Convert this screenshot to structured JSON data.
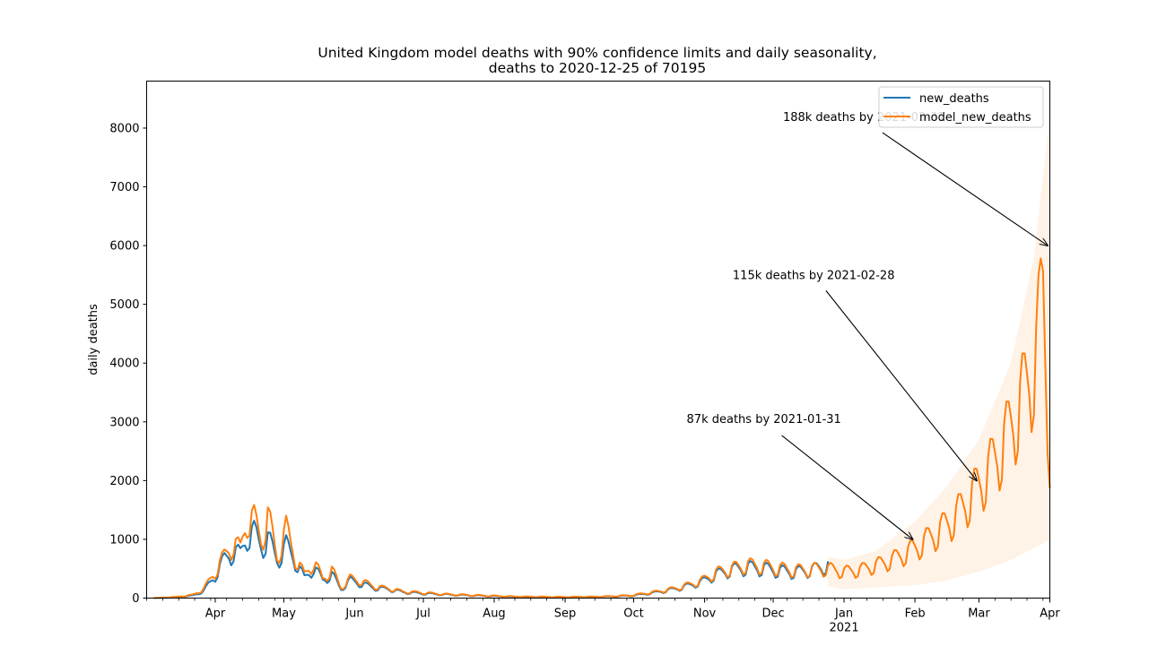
{
  "chart_data": {
    "type": "line",
    "title_line1": "United Kingdom model deaths with 90% confidence limits and daily seasonality,",
    "title_line2": "deaths to 2020-12-25 of 70195",
    "ylabel": "daily deaths",
    "xlabel": "",
    "ylim": [
      0,
      8800
    ],
    "xlim": [
      "2020-03-02",
      "2021-04-01"
    ],
    "grid": false,
    "legend_position": "top-right",
    "y_ticks": [
      0,
      1000,
      2000,
      3000,
      4000,
      5000,
      6000,
      7000,
      8000
    ],
    "x_ticks": [
      {
        "date": "2020-04-01",
        "label": "Apr"
      },
      {
        "date": "2020-05-01",
        "label": "May"
      },
      {
        "date": "2020-06-01",
        "label": "Jun"
      },
      {
        "date": "2020-07-01",
        "label": "Jul"
      },
      {
        "date": "2020-08-01",
        "label": "Aug"
      },
      {
        "date": "2020-09-01",
        "label": "Sep"
      },
      {
        "date": "2020-10-01",
        "label": "Oct"
      },
      {
        "date": "2020-11-01",
        "label": "Nov"
      },
      {
        "date": "2020-12-01",
        "label": "Dec"
      },
      {
        "date": "2021-01-01",
        "label": "Jan"
      },
      {
        "date": "2021-02-01",
        "label": "Feb"
      },
      {
        "date": "2021-03-01",
        "label": "Mar"
      },
      {
        "date": "2021-04-01",
        "label": "Apr"
      }
    ],
    "x_year_label": "2021",
    "series": [
      {
        "name": "new_deaths",
        "color": "#1f77b4",
        "points": [
          [
            "2020-03-05",
            0
          ],
          [
            "2020-03-15",
            15
          ],
          [
            "2020-03-22",
            40
          ],
          [
            "2020-03-27",
            120
          ],
          [
            "2020-04-01",
            380
          ],
          [
            "2020-04-05",
            650
          ],
          [
            "2020-04-09",
            800
          ],
          [
            "2020-04-12",
            720
          ],
          [
            "2020-04-15",
            1100
          ],
          [
            "2020-04-18",
            1080
          ],
          [
            "2020-04-21",
            900
          ],
          [
            "2020-04-24",
            1000
          ],
          [
            "2020-04-28",
            650
          ],
          [
            "2020-05-02",
            880
          ],
          [
            "2020-05-06",
            640
          ],
          [
            "2020-05-10",
            330
          ],
          [
            "2020-05-14",
            520
          ],
          [
            "2020-05-18",
            300
          ],
          [
            "2020-05-22",
            400
          ],
          [
            "2020-05-26",
            150
          ],
          [
            "2020-05-30",
            300
          ],
          [
            "2020-06-04",
            240
          ],
          [
            "2020-06-10",
            170
          ],
          [
            "2020-06-16",
            150
          ],
          [
            "2020-06-22",
            100
          ],
          [
            "2020-06-30",
            80
          ],
          [
            "2020-07-10",
            60
          ],
          [
            "2020-07-25",
            40
          ],
          [
            "2020-08-10",
            20
          ],
          [
            "2020-08-30",
            15
          ],
          [
            "2020-09-15",
            20
          ],
          [
            "2020-09-30",
            40
          ],
          [
            "2020-10-10",
            90
          ],
          [
            "2020-10-20",
            160
          ],
          [
            "2020-10-30",
            260
          ],
          [
            "2020-11-06",
            400
          ],
          [
            "2020-11-13",
            480
          ],
          [
            "2020-11-20",
            520
          ],
          [
            "2020-11-27",
            500
          ],
          [
            "2020-12-04",
            460
          ],
          [
            "2020-12-11",
            440
          ],
          [
            "2020-12-18",
            480
          ],
          [
            "2020-12-25",
            560
          ]
        ]
      },
      {
        "name": "model_new_deaths",
        "color": "#ff7f0e",
        "points": [
          [
            "2020-03-05",
            0
          ],
          [
            "2020-03-15",
            20
          ],
          [
            "2020-03-22",
            50
          ],
          [
            "2020-03-27",
            150
          ],
          [
            "2020-04-01",
            450
          ],
          [
            "2020-04-05",
            700
          ],
          [
            "2020-04-09",
            950
          ],
          [
            "2020-04-12",
            800
          ],
          [
            "2020-04-15",
            1400
          ],
          [
            "2020-04-18",
            1300
          ],
          [
            "2020-04-21",
            1000
          ],
          [
            "2020-04-24",
            1380
          ],
          [
            "2020-04-28",
            700
          ],
          [
            "2020-05-02",
            1150
          ],
          [
            "2020-05-06",
            700
          ],
          [
            "2020-05-10",
            380
          ],
          [
            "2020-05-14",
            620
          ],
          [
            "2020-05-18",
            320
          ],
          [
            "2020-05-22",
            480
          ],
          [
            "2020-05-26",
            170
          ],
          [
            "2020-05-30",
            330
          ],
          [
            "2020-06-04",
            280
          ],
          [
            "2020-06-10",
            190
          ],
          [
            "2020-06-16",
            160
          ],
          [
            "2020-06-22",
            110
          ],
          [
            "2020-06-30",
            90
          ],
          [
            "2020-07-10",
            65
          ],
          [
            "2020-07-25",
            45
          ],
          [
            "2020-08-10",
            25
          ],
          [
            "2020-08-30",
            18
          ],
          [
            "2020-09-15",
            22
          ],
          [
            "2020-09-30",
            45
          ],
          [
            "2020-10-10",
            100
          ],
          [
            "2020-10-20",
            170
          ],
          [
            "2020-10-30",
            280
          ],
          [
            "2020-11-06",
            430
          ],
          [
            "2020-11-13",
            500
          ],
          [
            "2020-11-20",
            560
          ],
          [
            "2020-11-27",
            540
          ],
          [
            "2020-12-04",
            500
          ],
          [
            "2020-12-11",
            470
          ],
          [
            "2020-12-18",
            490
          ],
          [
            "2020-12-25",
            500
          ],
          [
            "2021-01-01",
            450
          ],
          [
            "2021-01-08",
            480
          ],
          [
            "2021-01-15",
            560
          ],
          [
            "2021-01-22",
            650
          ],
          [
            "2021-01-29",
            780
          ],
          [
            "2021-02-05",
            950
          ],
          [
            "2021-02-12",
            1150
          ],
          [
            "2021-02-19",
            1400
          ],
          [
            "2021-02-26",
            1750
          ],
          [
            "2021-03-05",
            2150
          ],
          [
            "2021-03-12",
            2650
          ],
          [
            "2021-03-19",
            3300
          ],
          [
            "2021-03-26",
            4100
          ],
          [
            "2021-03-29",
            5300
          ],
          [
            "2021-04-01",
            2400
          ]
        ]
      }
    ],
    "confidence_band": {
      "color": "#ff7f0e",
      "upper": [
        [
          "2020-12-25",
          700
        ],
        [
          "2021-01-01",
          650
        ],
        [
          "2021-01-15",
          800
        ],
        [
          "2021-02-01",
          1300
        ],
        [
          "2021-02-15",
          1900
        ],
        [
          "2021-03-01",
          2700
        ],
        [
          "2021-03-15",
          4000
        ],
        [
          "2021-03-25",
          5800
        ],
        [
          "2021-04-01",
          8200
        ]
      ],
      "lower": [
        [
          "2020-12-25",
          200
        ],
        [
          "2021-01-01",
          150
        ],
        [
          "2021-01-15",
          180
        ],
        [
          "2021-02-01",
          220
        ],
        [
          "2021-02-15",
          300
        ],
        [
          "2021-03-01",
          450
        ],
        [
          "2021-03-15",
          650
        ],
        [
          "2021-03-25",
          850
        ],
        [
          "2021-04-01",
          1000
        ]
      ]
    },
    "annotations": [
      {
        "text": "87k deaths by 2021-01-31",
        "date": "2021-01-31",
        "value": 1000
      },
      {
        "text": "115k deaths by 2021-02-28",
        "date": "2021-02-28",
        "value": 2000
      },
      {
        "text": "188k deaths by 2021-03-31",
        "date": "2021-03-31",
        "value": 6000
      }
    ]
  }
}
